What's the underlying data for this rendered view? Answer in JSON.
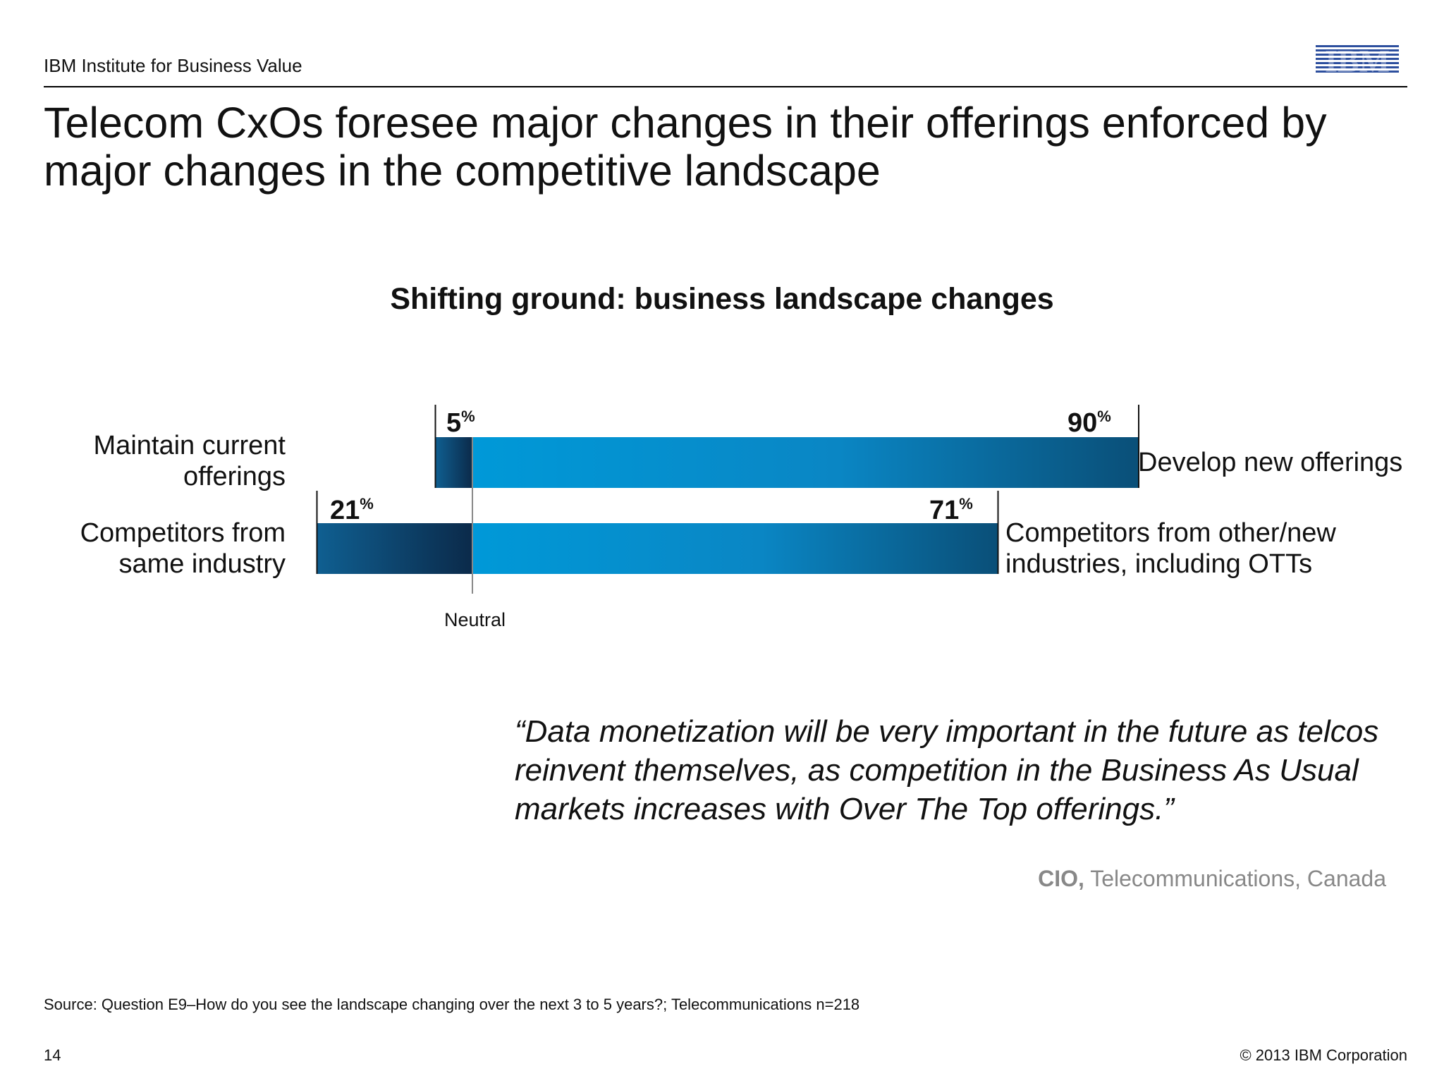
{
  "header": {
    "org": "IBM Institute for Business Value",
    "logo": "IBM"
  },
  "slide": {
    "title": "Telecom CxOs foresee major changes in their offerings enforced by major changes in the competitive landscape"
  },
  "chart_data": {
    "type": "bar",
    "title": "Shifting ground: business landscape changes",
    "neutral_label": "Neutral",
    "rows": [
      {
        "left_label": "Maintain current offerings",
        "right_label": "Develop new offerings",
        "left_value": 5,
        "right_value": 90,
        "left_value_text": "5",
        "right_value_text": "90",
        "unit": "%"
      },
      {
        "left_label": "Competitors from same industry",
        "right_label": "Competitors from other/new industries, including OTTs",
        "left_value": 21,
        "right_value": 71,
        "left_value_text": "21",
        "right_value_text": "71",
        "unit": "%"
      }
    ],
    "colors": {
      "left_dark": "#0b2a4a",
      "left_light": "#0f5f91",
      "right_light": "#0099d8",
      "right_dark": "#0a4f78"
    }
  },
  "quote": {
    "text": "“Data monetization will be very important in the future as telcos reinvent themselves, as competition in the Business As Usual markets increases with Over The Top offerings.”",
    "attribution_bold": "CIO,",
    "attribution_rest": " Telecommunications, Canada"
  },
  "footer": {
    "source": "Source:  Question E9–How do you see the landscape changing over the next 3 to 5 years?;  Telecommunications n=218",
    "page": "14",
    "copyright": "© 2013 IBM Corporation"
  }
}
